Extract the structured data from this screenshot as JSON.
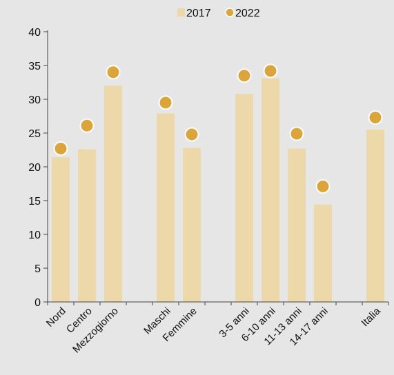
{
  "chart_data": {
    "type": "bar",
    "title": "",
    "xlabel": "",
    "ylabel": "",
    "ylim": [
      0,
      40
    ],
    "yticks": [
      0,
      5,
      10,
      15,
      20,
      25,
      30,
      35,
      40
    ],
    "grid": false,
    "legend_position": "top-center",
    "categories": [
      "Nord",
      "Centro",
      "Mezzogiorno",
      "",
      "Maschi",
      "Femmine",
      "",
      "3-5 anni",
      "6-10 anni",
      "11-13 anni",
      "14-17 anni",
      "",
      "Italia"
    ],
    "series": [
      {
        "name": "2017",
        "kind": "bar",
        "color": "#ecd8a8",
        "values": [
          21.4,
          22.6,
          32.0,
          null,
          27.9,
          22.8,
          null,
          30.8,
          33.1,
          22.7,
          14.4,
          null,
          25.5
        ]
      },
      {
        "name": "2022",
        "kind": "dot",
        "color": "#dba53b",
        "values": [
          22.7,
          26.1,
          34.0,
          null,
          29.5,
          24.8,
          null,
          33.5,
          34.2,
          24.9,
          17.1,
          null,
          27.3
        ]
      }
    ]
  }
}
